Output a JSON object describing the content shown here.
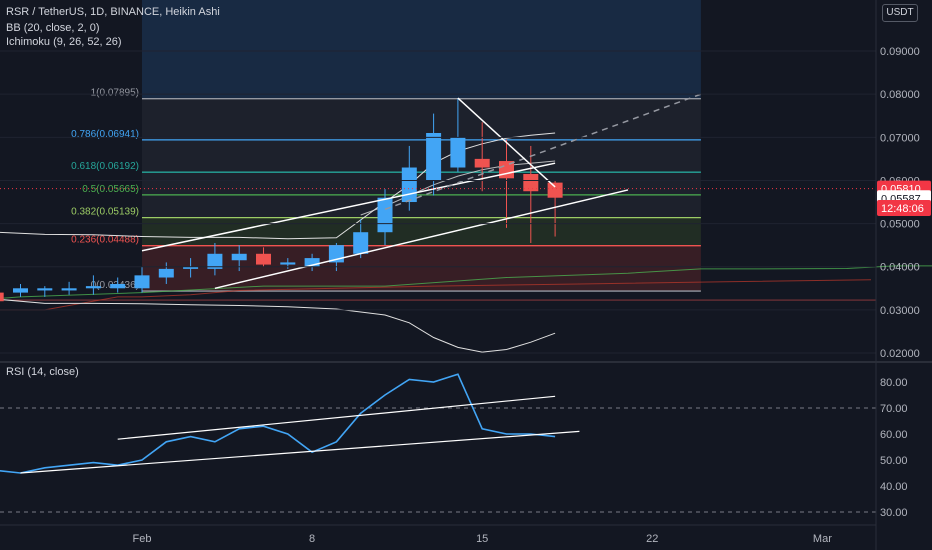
{
  "header": {
    "title": "RSR / TetherUS, 1D, BINANCE, Heikin Ashi",
    "bb": "BB (20, close, 2, 0)",
    "ichimoku": "Ichimoku (9, 26, 52, 26)",
    "rsi": "RSI (14, close)",
    "currency": "USDT"
  },
  "colors": {
    "background": "#131722",
    "up": "#42a5f5",
    "down": "#ef5350",
    "bb": "#e0e0e0",
    "rsi": "#42a5f5",
    "price_tag_red": "#f23645",
    "countdown_bg": "#f23645"
  },
  "price_tags": [
    {
      "label": "0.05810",
      "value": 0.0581
    },
    {
      "label": "0.05587",
      "value": 0.05587
    },
    {
      "label": "12:48:06",
      "value": 0.0536
    }
  ],
  "chart_data": [
    {
      "type": "candlestick",
      "title": "RSR / TetherUS, 1D, BINANCE, Heikin Ashi",
      "x_ticks": [
        "Feb",
        "8",
        "15",
        "22",
        "Mar"
      ],
      "y_ticks": [
        "0.02000",
        "0.03000",
        "0.04000",
        "0.05000",
        "0.06000",
        "0.07000",
        "0.08000",
        "0.09000"
      ],
      "ylim": [
        0.018,
        0.1
      ],
      "candles": [
        {
          "day": -8,
          "o": 0.0385,
          "h": 0.0395,
          "l": 0.0345,
          "c": 0.036
        },
        {
          "day": -7,
          "o": 0.036,
          "h": 0.0385,
          "l": 0.0325,
          "c": 0.034
        },
        {
          "day": -6,
          "o": 0.034,
          "h": 0.0365,
          "l": 0.0315,
          "c": 0.032
        },
        {
          "day": -5,
          "o": 0.034,
          "h": 0.036,
          "l": 0.033,
          "c": 0.035
        },
        {
          "day": -4,
          "o": 0.0345,
          "h": 0.0355,
          "l": 0.033,
          "c": 0.035
        },
        {
          "day": -3,
          "o": 0.0345,
          "h": 0.0365,
          "l": 0.0335,
          "c": 0.035
        },
        {
          "day": -2,
          "o": 0.035,
          "h": 0.038,
          "l": 0.0335,
          "c": 0.0355
        },
        {
          "day": -1,
          "o": 0.035,
          "h": 0.0375,
          "l": 0.034,
          "c": 0.036
        },
        {
          "day": 0,
          "o": 0.035,
          "h": 0.04,
          "l": 0.034,
          "c": 0.038
        },
        {
          "day": 1,
          "o": 0.0375,
          "h": 0.041,
          "l": 0.036,
          "c": 0.0395
        },
        {
          "day": 2,
          "o": 0.0395,
          "h": 0.042,
          "l": 0.0375,
          "c": 0.04
        },
        {
          "day": 3,
          "o": 0.0395,
          "h": 0.0455,
          "l": 0.038,
          "c": 0.043
        },
        {
          "day": 4,
          "o": 0.0415,
          "h": 0.045,
          "l": 0.039,
          "c": 0.043
        },
        {
          "day": 5,
          "o": 0.043,
          "h": 0.0445,
          "l": 0.04,
          "c": 0.0405
        },
        {
          "day": 6,
          "o": 0.0405,
          "h": 0.042,
          "l": 0.0395,
          "c": 0.041
        },
        {
          "day": 7,
          "o": 0.04,
          "h": 0.043,
          "l": 0.039,
          "c": 0.042
        },
        {
          "day": 8,
          "o": 0.041,
          "h": 0.0455,
          "l": 0.039,
          "c": 0.045
        },
        {
          "day": 9,
          "o": 0.043,
          "h": 0.051,
          "l": 0.042,
          "c": 0.048
        },
        {
          "day": 10,
          "o": 0.048,
          "h": 0.058,
          "l": 0.045,
          "c": 0.056
        },
        {
          "day": 11,
          "o": 0.055,
          "h": 0.068,
          "l": 0.053,
          "c": 0.063
        },
        {
          "day": 12,
          "o": 0.06,
          "h": 0.0755,
          "l": 0.0565,
          "c": 0.071
        },
        {
          "day": 13,
          "o": 0.063,
          "h": 0.079,
          "l": 0.062,
          "c": 0.07
        },
        {
          "day": 14,
          "o": 0.065,
          "h": 0.0735,
          "l": 0.0575,
          "c": 0.063
        },
        {
          "day": 15,
          "o": 0.0645,
          "h": 0.0695,
          "l": 0.049,
          "c": 0.0605
        },
        {
          "day": 16,
          "o": 0.0615,
          "h": 0.068,
          "l": 0.0455,
          "c": 0.0575
        },
        {
          "day": 17,
          "o": 0.0595,
          "h": 0.06,
          "l": 0.047,
          "c": 0.056
        }
      ],
      "bollinger": {
        "upper": [
          [
            -8,
            0.0474
          ],
          [
            -6,
            0.048
          ],
          [
            -4,
            0.0475
          ],
          [
            -2,
            0.0474
          ],
          [
            0,
            0.047
          ],
          [
            2,
            0.0468
          ],
          [
            4,
            0.0468
          ],
          [
            6,
            0.0465
          ],
          [
            8,
            0.0467
          ],
          [
            10,
            0.055
          ],
          [
            11,
            0.059
          ],
          [
            12,
            0.064
          ],
          [
            13,
            0.0668
          ],
          [
            14,
            0.0685
          ],
          [
            15,
            0.0698
          ],
          [
            16,
            0.0705
          ],
          [
            17,
            0.071
          ]
        ],
        "basis": [
          [
            9,
            0.052
          ],
          [
            10,
            0.054
          ],
          [
            11,
            0.0565
          ],
          [
            12,
            0.059
          ],
          [
            13,
            0.061
          ],
          [
            14,
            0.0625
          ],
          [
            15,
            0.0635
          ],
          [
            16,
            0.064
          ],
          [
            17,
            0.0645
          ]
        ],
        "lower": [
          [
            -8,
            0.034
          ],
          [
            -6,
            0.0325
          ],
          [
            -4,
            0.0315
          ],
          [
            -2,
            0.0315
          ],
          [
            0,
            0.0314
          ],
          [
            2,
            0.0312
          ],
          [
            4,
            0.031
          ],
          [
            6,
            0.0307
          ],
          [
            8,
            0.0302
          ],
          [
            10,
            0.0288
          ],
          [
            11,
            0.027
          ],
          [
            12,
            0.0236
          ],
          [
            13,
            0.0213
          ],
          [
            14,
            0.0202
          ],
          [
            15,
            0.0208
          ],
          [
            16,
            0.0225
          ],
          [
            17,
            0.0246
          ]
        ]
      },
      "fibonacci": [
        {
          "label": "1(0.07895)",
          "value": 0.07895,
          "color": "#9598a1"
        },
        {
          "label": "0.786(0.06941)",
          "value": 0.06941,
          "color": "#42a5f5"
        },
        {
          "label": "0.618(0.06192)",
          "value": 0.06192,
          "color": "#26a69a"
        },
        {
          "label": "0.5(0.05665)",
          "value": 0.05665,
          "color": "#4caf50"
        },
        {
          "label": "0.382(0.05139)",
          "value": 0.05139,
          "color": "#9ccc65"
        },
        {
          "label": "0.236(0.04488)",
          "value": 0.04488,
          "color": "#ef5350"
        },
        {
          "label": "0(0.03436)",
          "value": 0.03436,
          "color": "#9598a1"
        }
      ],
      "fib_range_days": [
        0,
        23
      ],
      "shaded_zone": {
        "from_day": 0,
        "to_day": 23
      },
      "trendlines": [
        {
          "name": "channel-upper",
          "points": [
            [
              0,
              0.0437
            ],
            [
              17,
              0.064
            ]
          ]
        },
        {
          "name": "channel-lower",
          "points": [
            [
              3,
              0.035
            ],
            [
              20,
              0.0578
            ]
          ]
        },
        {
          "name": "projection",
          "points": [
            [
              10,
              0.0533
            ],
            [
              23,
              0.08
            ]
          ],
          "dashed": true
        },
        {
          "name": "drop",
          "points": [
            [
              13,
              0.0791
            ],
            [
              17,
              0.0585
            ]
          ]
        }
      ],
      "cloud_line": [
        [
          -8,
          0.0318
        ],
        [
          -5,
          0.033
        ],
        [
          0,
          0.034
        ],
        [
          5,
          0.0355
        ],
        [
          10,
          0.0355
        ],
        [
          15,
          0.0375
        ],
        [
          20,
          0.0385
        ],
        [
          23,
          0.0395
        ],
        [
          25,
          0.0395
        ],
        [
          29,
          0.0396
        ],
        [
          31,
          0.0402
        ],
        [
          33,
          0.0402
        ]
      ],
      "base_line": [
        [
          -8,
          0.0325
        ],
        [
          -7,
          0.031
        ],
        [
          -6,
          0.03
        ],
        [
          -4,
          0.03
        ],
        [
          -3,
          0.031
        ],
        [
          -1,
          0.033
        ],
        [
          0,
          0.033
        ],
        [
          2,
          0.0335
        ],
        [
          4,
          0.0345
        ],
        [
          8,
          0.035
        ],
        [
          12,
          0.0355
        ],
        [
          18,
          0.036
        ],
        [
          24,
          0.0365
        ],
        [
          30,
          0.037
        ]
      ]
    },
    {
      "type": "line",
      "title": "RSI (14, close)",
      "y_ticks": [
        "30.00",
        "40.00",
        "50.00",
        "60.00",
        "70.00",
        "80.00"
      ],
      "ylim": [
        25,
        87
      ],
      "levels": [
        30,
        70
      ],
      "x": [
        -8,
        -7,
        -6,
        -5,
        -4,
        -3,
        -2,
        -1,
        0,
        1,
        2,
        3,
        4,
        5,
        6,
        7,
        8,
        9,
        10,
        11,
        12,
        13,
        14,
        15,
        16,
        17
      ],
      "values": [
        52,
        48,
        46,
        45,
        47,
        48,
        49,
        48,
        50,
        57,
        59,
        57,
        62,
        63,
        60,
        53,
        57,
        68,
        75,
        81,
        80,
        83,
        62,
        60,
        60,
        59
      ],
      "trendlines": [
        {
          "points": [
            [
              -5,
              45
            ],
            [
              18,
              61
            ]
          ]
        },
        {
          "points": [
            [
              -1,
              58
            ],
            [
              17,
              74.5
            ]
          ]
        }
      ]
    }
  ]
}
